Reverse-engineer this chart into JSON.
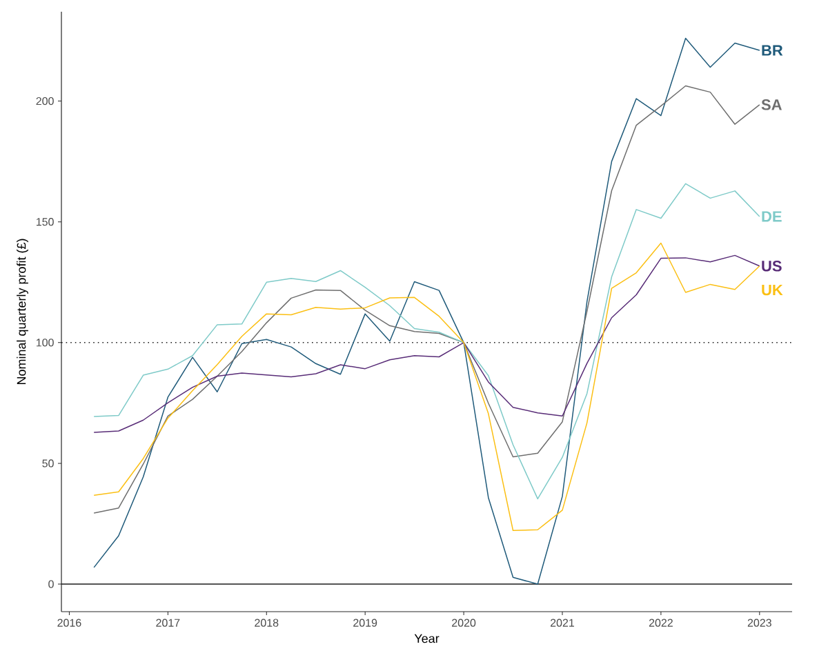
{
  "chart_data": {
    "type": "line",
    "xlabel": "Year",
    "ylabel": "Nominal quarterly profit (£)",
    "x": [
      2016.25,
      2016.5,
      2016.75,
      2017,
      2017.25,
      2017.5,
      2017.75,
      2018,
      2018.25,
      2018.5,
      2018.75,
      2019,
      2019.25,
      2019.5,
      2019.75,
      2020,
      2020.25,
      2020.5,
      2020.75,
      2021,
      2021.25,
      2021.5,
      2021.75,
      2022,
      2022.25,
      2022.5,
      2022.75,
      2023
    ],
    "xlim": [
      2015.92,
      2023.33
    ],
    "xticks": [
      2016,
      2017,
      2018,
      2019,
      2020,
      2021,
      2022,
      2023
    ],
    "ylim": [
      -11.4,
      237
    ],
    "yticks": [
      0,
      50,
      100,
      150,
      200
    ],
    "grid": false,
    "ref_lines": [
      {
        "axis": "y",
        "value": 0,
        "color": "#1a1a1a",
        "line_style": "solid"
      },
      {
        "axis": "y",
        "value": 100,
        "color": "#1a1a1a",
        "line_style": "dotted"
      }
    ],
    "series": [
      {
        "name": "BR",
        "color": "#1f5a7a",
        "values": [
          6.9,
          20,
          44.4,
          77.4,
          93.9,
          79.6,
          99.6,
          101.3,
          98.2,
          91.3,
          86.9,
          111.9,
          100.6,
          125.2,
          121.6,
          100,
          35.8,
          2.8,
          0,
          36.3,
          117,
          175,
          201,
          194,
          226,
          214,
          224,
          221
        ]
      },
      {
        "name": "SA",
        "color": "#6e6e6e",
        "values": [
          29.4,
          31.5,
          49.7,
          69.6,
          76.5,
          86.1,
          96.3,
          108.2,
          118.4,
          121.8,
          121.6,
          113.4,
          107,
          104.6,
          103.8,
          100,
          74.9,
          52.7,
          54.2,
          67.2,
          113,
          162.9,
          190,
          198,
          206.3,
          203.7,
          190.4,
          198.5
        ]
      },
      {
        "name": "DE",
        "color": "#7ecac8",
        "values": [
          69.4,
          69.8,
          86.5,
          89,
          94.6,
          107.4,
          107.7,
          125,
          126.6,
          125.3,
          129.8,
          122.9,
          115.3,
          105.8,
          104.3,
          100,
          86.3,
          57.7,
          35.3,
          52.5,
          78.9,
          127.2,
          155.1,
          151.5,
          165.8,
          159.8,
          162.8,
          152.2
        ]
      },
      {
        "name": "US",
        "color": "#582c77",
        "values": [
          62.8,
          63.4,
          67.9,
          75.1,
          81.5,
          86.1,
          87.4,
          86.6,
          85.8,
          87.1,
          90.8,
          89.2,
          92.9,
          94.6,
          94.1,
          100,
          83.7,
          73.2,
          70.9,
          69.6,
          91.4,
          110.3,
          119.8,
          134.9,
          135.1,
          133.4,
          136.1,
          131.7
        ]
      },
      {
        "name": "UK",
        "color": "#fbbf13",
        "values": [
          36.8,
          38.2,
          52,
          68.7,
          80.1,
          90.9,
          102.6,
          111.9,
          111.5,
          114.6,
          113.9,
          114.4,
          118.5,
          118.7,
          110.9,
          100,
          70.6,
          22.2,
          22.5,
          30.6,
          66.8,
          122.5,
          128.9,
          141.2,
          120.8,
          124.1,
          122,
          131.7
        ]
      }
    ]
  }
}
